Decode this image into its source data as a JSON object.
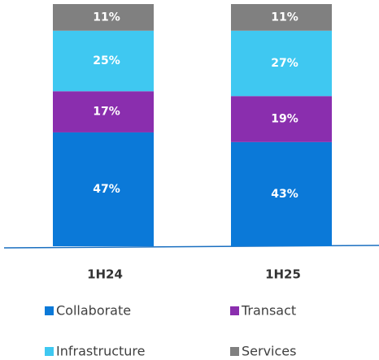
{
  "chart_data": {
    "type": "stacked_bar",
    "categories": [
      "1H24",
      "1H25"
    ],
    "ylim": [
      0,
      100
    ],
    "series": [
      {
        "name": "Collaborate",
        "color": "#0b79d8",
        "values": [
          47,
          43
        ],
        "value_labels": [
          "47%",
          "43%"
        ]
      },
      {
        "name": "Transact",
        "color": "#8a2eae",
        "values": [
          17,
          19
        ],
        "value_labels": [
          "17%",
          "19%"
        ]
      },
      {
        "name": "Infrastructure",
        "color": "#3fc8f1",
        "values": [
          25,
          27
        ],
        "value_labels": [
          "25%",
          "27%"
        ]
      },
      {
        "name": "Services",
        "color": "#808080",
        "values": [
          11,
          11
        ],
        "value_labels": [
          "11%",
          "11%"
        ]
      }
    ]
  }
}
